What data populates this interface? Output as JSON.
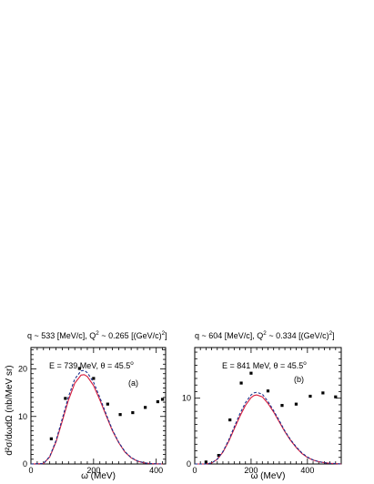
{
  "ylabel": "d²σ/dωdΩ (nb/MeV sr)",
  "chart_data": [
    {
      "type": "scatter",
      "panel": "(a)",
      "title_parts": [
        "q ~ 533 [MeV/c], Q",
        "2",
        " ~ 0.265 [(GeV/c)",
        "2",
        "]"
      ],
      "kin_parts": [
        "E = 739 MeV, θ = 45.5",
        "o"
      ],
      "xlabel": "ω (MeV)",
      "xlim": [
        0,
        430
      ],
      "ylim": [
        0,
        24.5
      ],
      "xticks": [
        0,
        200,
        400
      ],
      "yticks": [
        0,
        10,
        20
      ],
      "series": [
        {
          "kind": "points",
          "x": [
            65,
            110,
            155,
            200,
            245,
            285,
            325,
            365,
            405,
            420
          ],
          "y": [
            5.3,
            13.8,
            20.1,
            18.0,
            12.6,
            10.4,
            10.8,
            11.9,
            13.1,
            13.6
          ]
        },
        {
          "kind": "line",
          "style": "solid",
          "color": "#d81b3c",
          "x": [
            0,
            40,
            60,
            80,
            100,
            120,
            140,
            160,
            170,
            180,
            200,
            220,
            240,
            260,
            280,
            300,
            320,
            340,
            360,
            380,
            400,
            420
          ],
          "y": [
            0,
            0.1,
            1.5,
            4.6,
            9.0,
            13.5,
            17.0,
            18.7,
            18.8,
            18.4,
            16.5,
            13.5,
            10.2,
            7.0,
            4.5,
            2.5,
            1.3,
            0.6,
            0.25,
            0.1,
            0.03,
            0
          ]
        },
        {
          "kind": "line",
          "style": "dashed",
          "color": "#1a2f8c",
          "x": [
            0,
            40,
            60,
            80,
            100,
            120,
            140,
            160,
            170,
            180,
            200,
            220,
            240,
            260,
            280,
            300,
            320,
            340,
            360,
            380,
            400,
            420
          ],
          "y": [
            0,
            0.1,
            1.6,
            4.9,
            9.5,
            14.2,
            17.9,
            19.6,
            19.7,
            19.2,
            17.2,
            14.0,
            10.5,
            7.2,
            4.6,
            2.6,
            1.35,
            0.65,
            0.27,
            0.1,
            0.03,
            0
          ]
        }
      ]
    },
    {
      "type": "scatter",
      "panel": "(b)",
      "title_parts": [
        "q ~ 604 [MeV/c], Q",
        "2",
        " ~ 0.334 [(GeV/c)",
        "2",
        "]"
      ],
      "kin_parts": [
        "E = 841 MeV, θ = 45.5",
        "o"
      ],
      "xlabel": "ω (MeV)",
      "xlim": [
        0,
        520
      ],
      "ylim": [
        0,
        17.7
      ],
      "xticks": [
        0,
        200,
        400
      ],
      "yticks": [
        0,
        10
      ],
      "series": [
        {
          "kind": "points",
          "x": [
            40,
            85,
            125,
            165,
            200,
            260,
            310,
            360,
            410,
            455,
            500
          ],
          "y": [
            0.3,
            1.3,
            6.7,
            12.3,
            13.8,
            11.1,
            8.9,
            9.1,
            10.3,
            10.8,
            10.2
          ]
        },
        {
          "kind": "line",
          "style": "solid",
          "color": "#d81b3c",
          "x": [
            0,
            40,
            60,
            80,
            100,
            120,
            140,
            160,
            180,
            200,
            210,
            220,
            240,
            260,
            280,
            300,
            320,
            340,
            360,
            380,
            400,
            420,
            440,
            460,
            480,
            500,
            520
          ],
          "y": [
            0,
            0,
            0.15,
            0.7,
            1.8,
            3.4,
            5.3,
            7.2,
            8.9,
            10.1,
            10.4,
            10.5,
            10.2,
            9.2,
            7.9,
            6.4,
            4.9,
            3.6,
            2.5,
            1.6,
            1.0,
            0.6,
            0.35,
            0.2,
            0.1,
            0.05,
            0
          ]
        },
        {
          "kind": "line",
          "style": "dashed",
          "color": "#1a2f8c",
          "x": [
            0,
            40,
            60,
            80,
            100,
            120,
            140,
            160,
            180,
            200,
            210,
            220,
            240,
            260,
            280,
            300,
            320,
            340,
            360,
            380,
            400,
            420,
            440,
            460,
            480,
            500,
            520
          ],
          "y": [
            0,
            0,
            0.15,
            0.75,
            1.9,
            3.6,
            5.6,
            7.6,
            9.3,
            10.5,
            10.8,
            10.9,
            10.6,
            9.5,
            8.1,
            6.6,
            5.0,
            3.7,
            2.6,
            1.7,
            1.05,
            0.62,
            0.36,
            0.2,
            0.1,
            0.05,
            0
          ]
        }
      ]
    }
  ]
}
